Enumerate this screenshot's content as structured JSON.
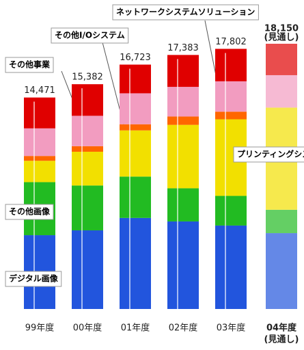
{
  "chart_data": {
    "type": "stacked-bar",
    "categories": [
      "99年度",
      "00年度",
      "01年度",
      "02年度",
      "03年度",
      "04年度"
    ],
    "forecast_note": "(見通し)",
    "series": [
      {
        "name": "デジタル画像",
        "color": "#2255dd",
        "values": [
          5050,
          5380,
          6230,
          5990,
          5710,
          5190
        ]
      },
      {
        "name": "その他画像",
        "color": "#22bb22",
        "values": [
          3630,
          3070,
          2830,
          2270,
          2030,
          1600
        ]
      },
      {
        "name": "プリンティングシステム",
        "color": "#f2e000",
        "values": [
          1460,
          2310,
          3160,
          4340,
          5240,
          6990
        ]
      },
      {
        "name": "ネットワークシステムソリューション",
        "color": "#ff6600",
        "values": [
          330,
          380,
          420,
          570,
          520,
          0
        ]
      },
      {
        "name": "その他I/Oシステム",
        "color": "#f29cc0",
        "values": [
          1890,
          2080,
          2120,
          2030,
          2080,
          2220
        ]
      },
      {
        "name": "その他事業",
        "color": "#e00000",
        "values": [
          2111,
          2162,
          1963,
          2183,
          2222,
          2150
        ]
      }
    ],
    "totals": {
      "values": [
        14471,
        15382,
        16723,
        17383,
        17802,
        18150
      ],
      "value_labels": [
        "14,471",
        "15,382",
        "16,723",
        "17,383",
        "17,802",
        "18,150"
      ]
    }
  }
}
